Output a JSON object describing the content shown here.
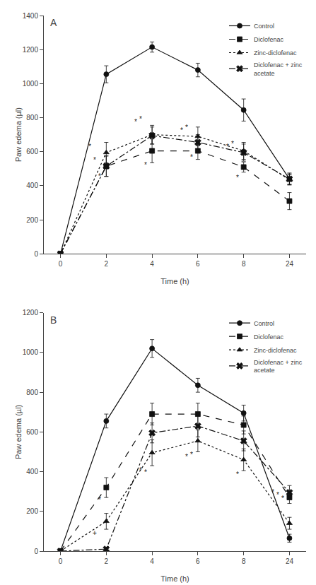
{
  "chart_data": [
    {
      "type": "line",
      "title": "A",
      "x_label": "Time (h)",
      "y_label": "Paw edema (µl)",
      "categories": [
        "0",
        "2",
        "4",
        "6",
        "8",
        "24"
      ],
      "ylim": [
        0,
        1400
      ],
      "yticks": [
        0,
        200,
        400,
        600,
        800,
        1000,
        1200,
        1400
      ],
      "grid": false,
      "legend": "upper right",
      "series": [
        {
          "name": "Control",
          "color": "#111111",
          "marker": "circle",
          "line_style": "solid",
          "values": [
            0,
            1055,
            1215,
            1080,
            845,
            440
          ],
          "errors": [
            0,
            50,
            30,
            40,
            65,
            30
          ]
        },
        {
          "name": "Diclofenac",
          "color": "#111111",
          "marker": "square",
          "line_style": "dash",
          "values": [
            0,
            515,
            605,
            605,
            510,
            310
          ],
          "errors": [
            0,
            60,
            70,
            50,
            30,
            50
          ]
        },
        {
          "name": "Zinc-diclofenac",
          "color": "#111111",
          "marker": "triangle-up",
          "line_style": "dot",
          "values": [
            0,
            595,
            700,
            690,
            605,
            435
          ],
          "errors": [
            0,
            60,
            55,
            55,
            50,
            30
          ]
        },
        {
          "name": "Diclofenac + zinc\nacetate",
          "color": "#111111",
          "marker": "x",
          "line_style": "dashdot",
          "values": [
            0,
            515,
            695,
            655,
            595,
            440
          ],
          "errors": [
            0,
            60,
            50,
            45,
            50,
            35
          ]
        }
      ],
      "annotations": [
        {
          "x": "2",
          "y": 425,
          "text": "*"
        },
        {
          "x": "2",
          "y": 520,
          "text": "*"
        },
        {
          "x": "2",
          "y": 600,
          "text": "*"
        },
        {
          "x": "4",
          "y": 490,
          "text": "*"
        },
        {
          "x": "4",
          "y": 760,
          "text": "*"
        },
        {
          "x": "4",
          "y": 745,
          "text": "*"
        },
        {
          "x": "6",
          "y": 535,
          "text": "*"
        },
        {
          "x": "6",
          "y": 710,
          "text": "*"
        },
        {
          "x": "6",
          "y": 695,
          "text": "*"
        },
        {
          "x": "8",
          "y": 415,
          "text": "*"
        },
        {
          "x": "8",
          "y": 615,
          "text": "*"
        },
        {
          "x": "8",
          "y": 600,
          "text": "*"
        }
      ]
    },
    {
      "type": "line",
      "title": "B",
      "x_label": "Time (h)",
      "y_label": "Paw edema (µl)",
      "categories": [
        "0",
        "2",
        "4",
        "6",
        "8",
        "24"
      ],
      "ylim": [
        0,
        1200
      ],
      "yticks": [
        0,
        200,
        400,
        600,
        800,
        1000,
        1200
      ],
      "grid": false,
      "legend": "upper right",
      "series": [
        {
          "name": "Control",
          "color": "#111111",
          "marker": "circle",
          "line_style": "solid",
          "values": [
            0,
            655,
            1020,
            835,
            695,
            65
          ],
          "errors": [
            0,
            35,
            45,
            35,
            40,
            20
          ]
        },
        {
          "name": "Diclofenac",
          "color": "#111111",
          "marker": "square",
          "line_style": "dash",
          "values": [
            0,
            320,
            690,
            690,
            635,
            270
          ],
          "errors": [
            0,
            50,
            55,
            55,
            45,
            30
          ]
        },
        {
          "name": "Zinc-diclofenac",
          "color": "#111111",
          "marker": "triangle-up",
          "line_style": "dot",
          "values": [
            0,
            150,
            495,
            555,
            460,
            140
          ],
          "errors": [
            0,
            40,
            65,
            55,
            55,
            30
          ]
        },
        {
          "name": "Diclofenac + zinc\nacetate",
          "color": "#111111",
          "marker": "x",
          "line_style": "dashdot",
          "values": [
            0,
            10,
            595,
            630,
            555,
            295
          ],
          "errors": [
            0,
            10,
            50,
            55,
            50,
            35
          ]
        }
      ],
      "annotations": [
        {
          "x": "2",
          "y": 230,
          "text": "*"
        },
        {
          "x": "2",
          "y": 65,
          "text": "+"
        },
        {
          "x": "4",
          "y": 370,
          "text": "*"
        },
        {
          "x": "4",
          "y": 380,
          "text": "*"
        },
        {
          "x": "6",
          "y": 460,
          "text": "*"
        },
        {
          "x": "6",
          "y": 448,
          "text": "*"
        },
        {
          "x": "8",
          "y": 360,
          "text": "*"
        },
        {
          "x": "24",
          "y": 240,
          "text": "*"
        },
        {
          "x": "24",
          "y": 255,
          "text": "*"
        },
        {
          "x": "24",
          "y": 270,
          "text": "*"
        }
      ]
    }
  ]
}
